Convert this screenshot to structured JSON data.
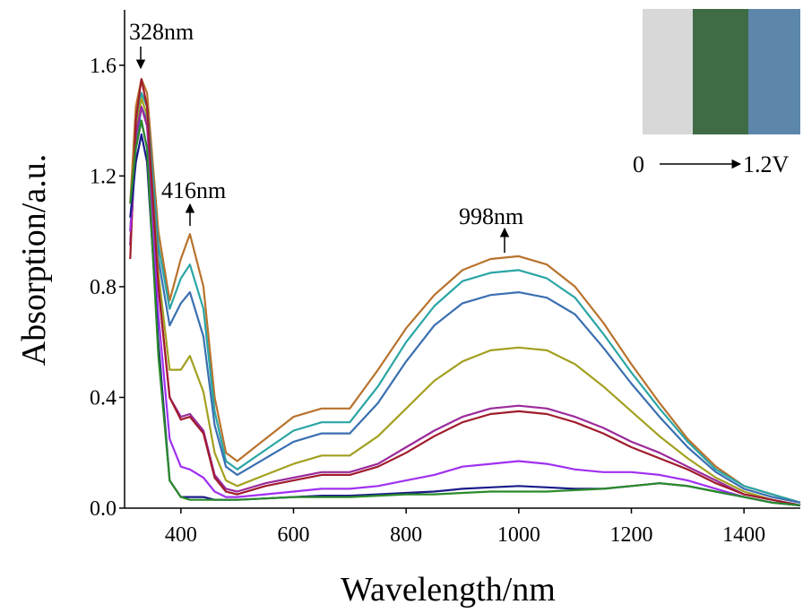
{
  "chart_data": {
    "type": "line",
    "xlabel": "Wavelength/nm",
    "ylabel": "Absorption/a.u.",
    "annotations": [
      "328nm",
      "416nm",
      "998nm",
      "0",
      "1.2V"
    ],
    "x": [
      310,
      320,
      330,
      340,
      360,
      380,
      400,
      416,
      440,
      460,
      480,
      500,
      550,
      600,
      650,
      700,
      750,
      800,
      850,
      900,
      950,
      1000,
      1050,
      1100,
      1150,
      1200,
      1250,
      1300,
      1350,
      1400,
      1450,
      1500
    ],
    "series": [
      {
        "color": "#b8722c",
        "values": [
          1.1,
          1.45,
          1.55,
          1.5,
          1.0,
          0.75,
          0.9,
          0.99,
          0.8,
          0.4,
          0.2,
          0.17,
          0.25,
          0.33,
          0.36,
          0.36,
          0.5,
          0.65,
          0.77,
          0.86,
          0.9,
          0.91,
          0.88,
          0.8,
          0.67,
          0.52,
          0.38,
          0.25,
          0.15,
          0.08,
          0.05,
          0.02
        ]
      },
      {
        "color": "#2aa5a5",
        "values": [
          1.0,
          1.35,
          1.5,
          1.45,
          0.95,
          0.72,
          0.83,
          0.88,
          0.72,
          0.35,
          0.17,
          0.14,
          0.21,
          0.28,
          0.31,
          0.31,
          0.44,
          0.6,
          0.73,
          0.82,
          0.85,
          0.86,
          0.83,
          0.76,
          0.63,
          0.49,
          0.36,
          0.24,
          0.14,
          0.08,
          0.05,
          0.02
        ]
      },
      {
        "color": "#3a6fb0",
        "values": [
          0.95,
          1.3,
          1.45,
          1.4,
          0.9,
          0.66,
          0.74,
          0.78,
          0.62,
          0.3,
          0.15,
          0.12,
          0.18,
          0.24,
          0.27,
          0.27,
          0.38,
          0.53,
          0.66,
          0.74,
          0.77,
          0.78,
          0.76,
          0.7,
          0.58,
          0.45,
          0.33,
          0.22,
          0.13,
          0.07,
          0.04,
          0.02
        ]
      },
      {
        "color": "#a3a020",
        "values": [
          1.0,
          1.35,
          1.48,
          1.42,
          0.85,
          0.5,
          0.5,
          0.55,
          0.42,
          0.2,
          0.1,
          0.08,
          0.12,
          0.16,
          0.19,
          0.19,
          0.26,
          0.36,
          0.46,
          0.53,
          0.57,
          0.58,
          0.57,
          0.52,
          0.44,
          0.35,
          0.26,
          0.18,
          0.11,
          0.06,
          0.03,
          0.01
        ]
      },
      {
        "color": "#9b2a9b",
        "values": [
          0.95,
          1.35,
          1.45,
          1.38,
          0.8,
          0.4,
          0.33,
          0.34,
          0.28,
          0.12,
          0.07,
          0.06,
          0.09,
          0.11,
          0.13,
          0.13,
          0.16,
          0.22,
          0.28,
          0.33,
          0.36,
          0.37,
          0.36,
          0.33,
          0.29,
          0.24,
          0.2,
          0.15,
          0.1,
          0.05,
          0.03,
          0.01
        ]
      },
      {
        "color": "#a01c2c",
        "values": [
          0.9,
          1.4,
          1.55,
          1.45,
          0.8,
          0.4,
          0.32,
          0.33,
          0.27,
          0.11,
          0.06,
          0.05,
          0.08,
          0.1,
          0.12,
          0.12,
          0.15,
          0.2,
          0.26,
          0.31,
          0.34,
          0.35,
          0.34,
          0.31,
          0.27,
          0.22,
          0.18,
          0.14,
          0.09,
          0.05,
          0.03,
          0.01
        ]
      },
      {
        "color": "#a030f0",
        "values": [
          1.0,
          1.3,
          1.4,
          1.3,
          0.7,
          0.25,
          0.15,
          0.14,
          0.11,
          0.06,
          0.04,
          0.04,
          0.05,
          0.06,
          0.07,
          0.07,
          0.08,
          0.1,
          0.12,
          0.15,
          0.16,
          0.17,
          0.16,
          0.14,
          0.13,
          0.13,
          0.12,
          0.1,
          0.07,
          0.04,
          0.02,
          0.01
        ]
      },
      {
        "color": "#1a1a8a",
        "values": [
          1.05,
          1.25,
          1.35,
          1.25,
          0.6,
          0.1,
          0.04,
          0.04,
          0.04,
          0.03,
          0.03,
          0.03,
          0.035,
          0.04,
          0.045,
          0.045,
          0.05,
          0.055,
          0.06,
          0.07,
          0.075,
          0.08,
          0.075,
          0.07,
          0.07,
          0.08,
          0.09,
          0.08,
          0.06,
          0.04,
          0.02,
          0.01
        ]
      },
      {
        "color": "#2a8a2a",
        "values": [
          1.1,
          1.3,
          1.4,
          1.3,
          0.55,
          0.1,
          0.04,
          0.03,
          0.03,
          0.03,
          0.03,
          0.03,
          0.035,
          0.04,
          0.04,
          0.04,
          0.045,
          0.05,
          0.05,
          0.055,
          0.06,
          0.06,
          0.06,
          0.065,
          0.07,
          0.08,
          0.09,
          0.08,
          0.06,
          0.04,
          0.02,
          0.01
        ]
      }
    ],
    "xlim": [
      300,
      1500
    ],
    "xticks": [
      400,
      600,
      800,
      1000,
      1200,
      1400
    ],
    "ylim": [
      0,
      1.8
    ],
    "yticks": [
      {
        "value": 0,
        "label": "0.0"
      },
      0.4,
      0.8,
      1.2,
      1.6
    ],
    "grid": false
  }
}
